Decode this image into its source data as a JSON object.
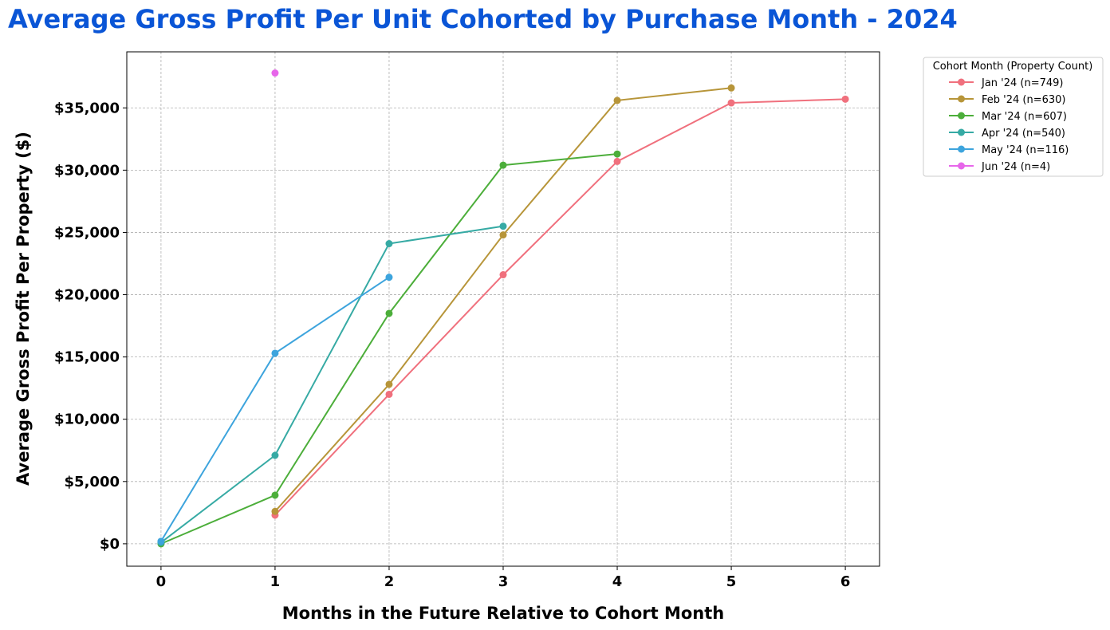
{
  "chart_data": {
    "type": "line",
    "title": "Average Gross Profit Per Unit Cohorted by Purchase Month - 2024",
    "xlabel": "Months in the Future Relative to Cohort Month",
    "ylabel": "Average Gross Profit Per Property ($)",
    "xlim": [
      -0.3,
      6.3
    ],
    "ylim": [
      -1800,
      39500
    ],
    "x_ticks": [
      0,
      1,
      2,
      3,
      4,
      5,
      6
    ],
    "x_tick_labels": [
      "0",
      "1",
      "2",
      "3",
      "4",
      "5",
      "6"
    ],
    "y_ticks": [
      0,
      5000,
      10000,
      15000,
      20000,
      25000,
      30000,
      35000
    ],
    "y_tick_labels": [
      "$0",
      "$5,000",
      "$10,000",
      "$15,000",
      "$20,000",
      "$25,000",
      "$30,000",
      "$35,000"
    ],
    "grid": true,
    "legend": {
      "title": "Cohort Month (Property Count)",
      "placement": "outside-top-right"
    },
    "title_color": "#0a55d6",
    "series": [
      {
        "name": "Jan '24 (n=749)",
        "color": "#f0707d",
        "x": [
          1,
          2,
          3,
          4,
          5,
          6
        ],
        "values": [
          2300,
          12000,
          21600,
          30700,
          35400,
          35700
        ]
      },
      {
        "name": "Feb '24 (n=630)",
        "color": "#b79539",
        "x": [
          1,
          2,
          3,
          4,
          5
        ],
        "values": [
          2600,
          12800,
          24800,
          35600,
          36600
        ]
      },
      {
        "name": "Mar '24 (n=607)",
        "color": "#4cae3a",
        "x": [
          0,
          1,
          2,
          3,
          4
        ],
        "values": [
          0,
          3900,
          18500,
          30400,
          31300
        ]
      },
      {
        "name": "Apr '24 (n=540)",
        "color": "#36aaa4",
        "x": [
          0,
          1,
          2,
          3
        ],
        "values": [
          100,
          7100,
          24100,
          25500
        ]
      },
      {
        "name": "May '24 (n=116)",
        "color": "#3da4dd",
        "x": [
          0,
          1,
          2
        ],
        "values": [
          200,
          15300,
          21400
        ]
      },
      {
        "name": "Jun '24 (n=4)",
        "color": "#e766ea",
        "x": [
          1
        ],
        "values": [
          37800
        ]
      }
    ]
  }
}
